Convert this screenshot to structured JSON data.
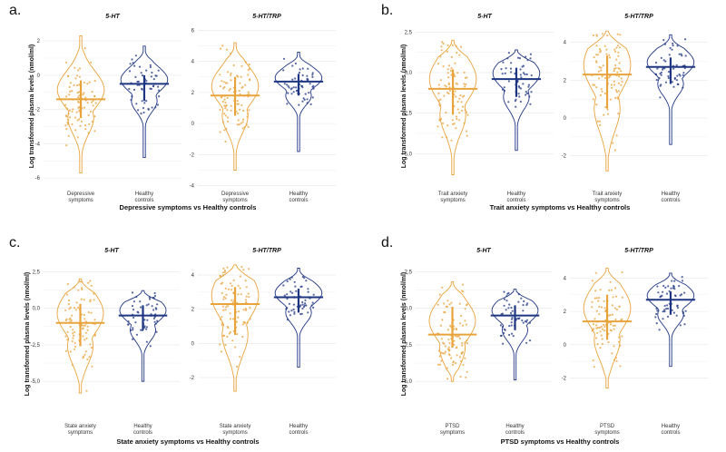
{
  "figure": {
    "ylabel": "Log transformed plasma levels (nmol/ml)"
  },
  "colors": {
    "case": "#E8A33B",
    "control": "#1E3582"
  },
  "chart_data": [
    {
      "panel": "a.",
      "type": "violin",
      "xlabel": "Depressive symptoms vs Healthy controls",
      "ylabel": "Log transformed plasma levels (nmol/ml)",
      "subplots": [
        {
          "title": "5-HT",
          "categories": [
            "Depressive symptoms",
            "Healthy controls"
          ],
          "yticks": [
            -6,
            -4,
            -2,
            0,
            2
          ],
          "ylim": [
            -6.2,
            2.8
          ],
          "series": [
            {
              "name": "Depressive symptoms",
              "median": -1.4,
              "q1": -2.5,
              "q3": -0.3,
              "min": -5.7,
              "max": 2.3
            },
            {
              "name": "Healthy controls",
              "median": -0.5,
              "q1": -1.5,
              "q3": 0.0,
              "min": -4.8,
              "max": 1.7
            }
          ]
        },
        {
          "title": "5-HT/TRP",
          "categories": [
            "Depressive symptoms",
            "Healthy controls"
          ],
          "yticks": [
            -4,
            -2,
            0,
            2,
            4,
            6
          ],
          "ylim": [
            -4.2,
            6.2
          ],
          "series": [
            {
              "name": "Depressive symptoms",
              "median": 1.8,
              "q1": 0.5,
              "q3": 3.0,
              "min": -3.0,
              "max": 5.2
            },
            {
              "name": "Healthy controls",
              "median": 2.7,
              "q1": 1.8,
              "q3": 3.2,
              "min": -1.8,
              "max": 4.6
            }
          ]
        }
      ]
    },
    {
      "panel": "b.",
      "type": "violin",
      "xlabel": "Trait anxiety symptoms vs Healthy controls",
      "ylabel": "Log transformed plasma levels (nmol/ml)",
      "subplots": [
        {
          "title": "5-HT",
          "categories": [
            "Trait anxiety symptoms",
            "Healthy controls"
          ],
          "yticks": [
            -5.0,
            -2.5,
            0.0,
            2.5
          ],
          "yticklabels": [
            "-5,0",
            "-2,5",
            "0,0",
            "2,5"
          ],
          "ylim": [
            -7.0,
            2.8
          ],
          "series": [
            {
              "name": "Trait anxiety symptoms",
              "median": -1.0,
              "q1": -2.6,
              "q3": 0.2,
              "min": -6.3,
              "max": 2.0
            },
            {
              "name": "Healthy controls",
              "median": -0.4,
              "q1": -1.5,
              "q3": 0.3,
              "min": -4.8,
              "max": 1.4
            }
          ]
        },
        {
          "title": "5-HT/TRP",
          "categories": [
            "Trait anxiety symptoms",
            "Healthy controls"
          ],
          "yticks": [
            -2,
            0,
            2,
            4
          ],
          "ylim": [
            -3.6,
            4.8
          ],
          "series": [
            {
              "name": "Trait anxiety symptoms",
              "median": 2.3,
              "q1": 0.5,
              "q3": 3.3,
              "min": -2.8,
              "max": 4.6
            },
            {
              "name": "Healthy controls",
              "median": 2.7,
              "q1": 1.8,
              "q3": 3.2,
              "min": -1.4,
              "max": 4.4
            }
          ]
        }
      ]
    },
    {
      "panel": "c.",
      "type": "violin",
      "xlabel": "State anxiety symptoms vs Healthy controls",
      "ylabel": "Log transformed plasma levels (nmol/ml)",
      "subplots": [
        {
          "title": "5-HT",
          "categories": [
            "State anxiety symptoms",
            "Healthy controls"
          ],
          "yticks": [
            -5.0,
            -2.5,
            0.0,
            2.5
          ],
          "yticklabels": [
            "-5,0",
            "-2,5",
            "0,0",
            "2,5"
          ],
          "ylim": [
            -6.6,
            3.2
          ],
          "series": [
            {
              "name": "State anxiety symptoms",
              "median": -1.0,
              "q1": -2.6,
              "q3": 0.3,
              "min": -5.8,
              "max": 2.0
            },
            {
              "name": "Healthy controls",
              "median": -0.5,
              "q1": -1.5,
              "q3": 0.2,
              "min": -5.0,
              "max": 1.2
            }
          ]
        },
        {
          "title": "5-HT/TRP",
          "categories": [
            "State anxiety symptoms",
            "Healthy controls"
          ],
          "yticks": [
            -2,
            0,
            2,
            4
          ],
          "ylim": [
            -3.6,
            4.8
          ],
          "series": [
            {
              "name": "State anxiety symptoms",
              "median": 2.3,
              "q1": 0.5,
              "q3": 3.3,
              "min": -2.8,
              "max": 4.6
            },
            {
              "name": "Healthy controls",
              "median": 2.7,
              "q1": 1.8,
              "q3": 3.2,
              "min": -1.4,
              "max": 4.4
            }
          ]
        }
      ]
    },
    {
      "panel": "d.",
      "type": "violin",
      "xlabel": "PTSD symptoms vs Healthy controls",
      "ylabel": "Log transformed plasma levels (nmol/ml)",
      "subplots": [
        {
          "title": "5-HT",
          "categories": [
            "PTSD symptoms",
            "Healthy controls"
          ],
          "yticks": [
            -5.0,
            -2.5,
            0.0,
            2.5
          ],
          "yticklabels": [
            "-5,0",
            "-2,5",
            "0,0",
            "2,5"
          ],
          "ylim": [
            -6.6,
            3.2
          ],
          "series": [
            {
              "name": "PTSD symptoms",
              "median": -1.8,
              "q1": -2.7,
              "q3": 0.1,
              "min": -5.0,
              "max": 1.8
            },
            {
              "name": "Healthy controls",
              "median": -0.5,
              "q1": -1.5,
              "q3": 0.2,
              "min": -4.9,
              "max": 1.3
            }
          ]
        },
        {
          "title": "5-HT/TRP",
          "categories": [
            "PTSD symptoms",
            "Healthy controls"
          ],
          "yticks": [
            -2,
            0,
            2,
            4
          ],
          "ylim": [
            -3.6,
            5.0
          ],
          "series": [
            {
              "name": "PTSD symptoms",
              "median": 1.4,
              "q1": 0.3,
              "q3": 3.0,
              "min": -2.6,
              "max": 4.6
            },
            {
              "name": "Healthy controls",
              "median": 2.7,
              "q1": 1.8,
              "q3": 3.2,
              "min": -1.3,
              "max": 4.3
            }
          ]
        }
      ]
    }
  ]
}
